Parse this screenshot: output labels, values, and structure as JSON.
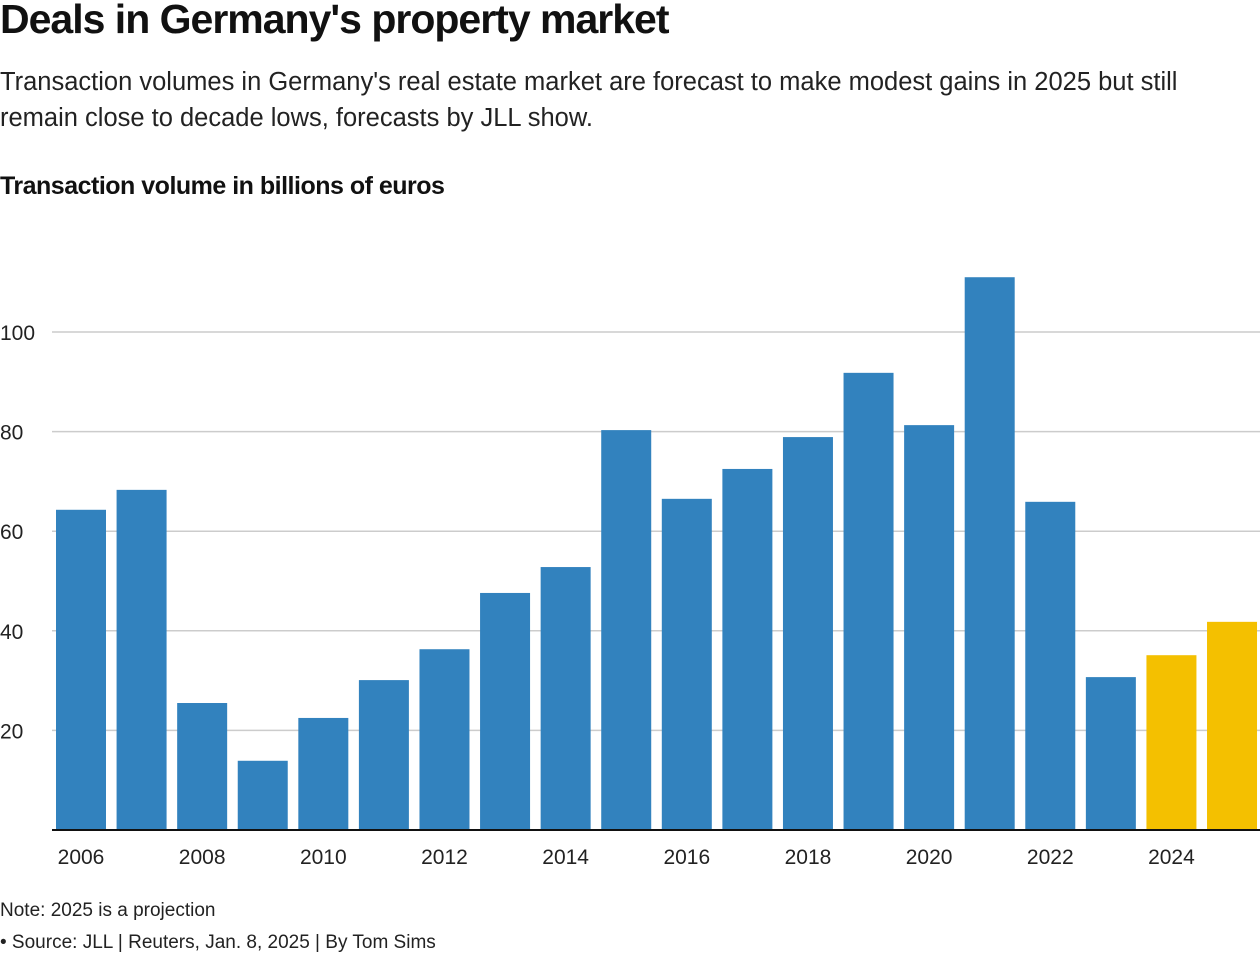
{
  "title": "Deals in Germany's property market",
  "subtitle": "Transaction volumes in Germany's real estate market are forecast to make modest gains in 2025 but still remain close to decade lows, forecasts by JLL show.",
  "note": "Note: 2025 is a projection",
  "source": "• Source: JLL | Reuters, Jan. 8, 2025 | By Tom Sims",
  "chart_data": {
    "type": "bar",
    "title": "Deals in Germany's property market",
    "ylabel": "Transaction volume in billions of euros",
    "xlabel": "",
    "categories": [
      "2006",
      "2007",
      "2008",
      "2009",
      "2010",
      "2011",
      "2012",
      "2013",
      "2014",
      "2015",
      "2016",
      "2017",
      "2018",
      "2019",
      "2020",
      "2021",
      "2022",
      "2023",
      "2024",
      "2025"
    ],
    "values": [
      64.3,
      68.3,
      25.5,
      13.9,
      22.5,
      30.1,
      36.3,
      47.6,
      52.8,
      80.3,
      66.5,
      72.5,
      78.9,
      91.8,
      81.3,
      111.0,
      65.9,
      30.7,
      35.1,
      41.8
    ],
    "highlighted": [
      "2024",
      "2025"
    ],
    "ylim": [
      0,
      112
    ],
    "yticks": [
      20,
      40,
      60,
      80,
      100
    ],
    "xticks": [
      "2006",
      "2008",
      "2010",
      "2012",
      "2014",
      "2016",
      "2018",
      "2020",
      "2022",
      "2024"
    ],
    "grid": true,
    "colors": {
      "bar": "#3282be",
      "highlight": "#f4c000",
      "grid": "#cccccc",
      "axis": "#111111"
    }
  }
}
